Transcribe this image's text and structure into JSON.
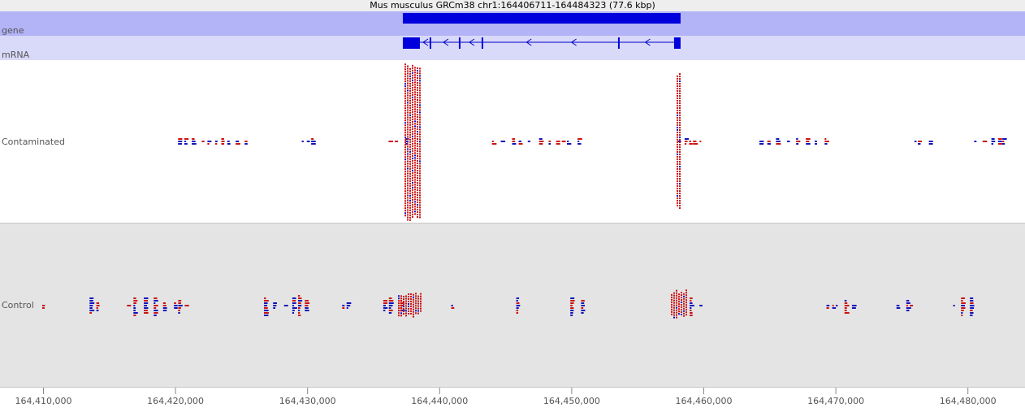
{
  "header": {
    "title": "Mus musculus GRCm38 chr1:164406711-164484323 (77.6 kbp)"
  },
  "xlim": [
    164406711,
    164484323
  ],
  "xticks": [
    {
      "value": 164410000,
      "label": "164,410,000"
    },
    {
      "value": 164420000,
      "label": "164,420,000"
    },
    {
      "value": 164430000,
      "label": "164,430,000"
    },
    {
      "value": 164440000,
      "label": "164,440,000"
    },
    {
      "value": 164450000,
      "label": "164,450,000"
    },
    {
      "value": 164460000,
      "label": "164,460,000"
    },
    {
      "value": 164470000,
      "label": "164,470,000"
    },
    {
      "value": 164480000,
      "label": "164,480,000"
    }
  ],
  "tracks": [
    {
      "label": "gene",
      "features": [
        [
          164437213,
          164458243
        ]
      ]
    },
    {
      "label": "mRNA",
      "features": [
        [
          164437213,
          164438504
        ],
        [
          164439241,
          164439364
        ],
        [
          164441455,
          164441578
        ],
        [
          164443177,
          164443300
        ],
        [
          164453508,
          164453631
        ],
        [
          164457751,
          164458243
        ]
      ]
    },
    {
      "label": "Contaminated"
    },
    {
      "label": "Control"
    }
  ]
}
